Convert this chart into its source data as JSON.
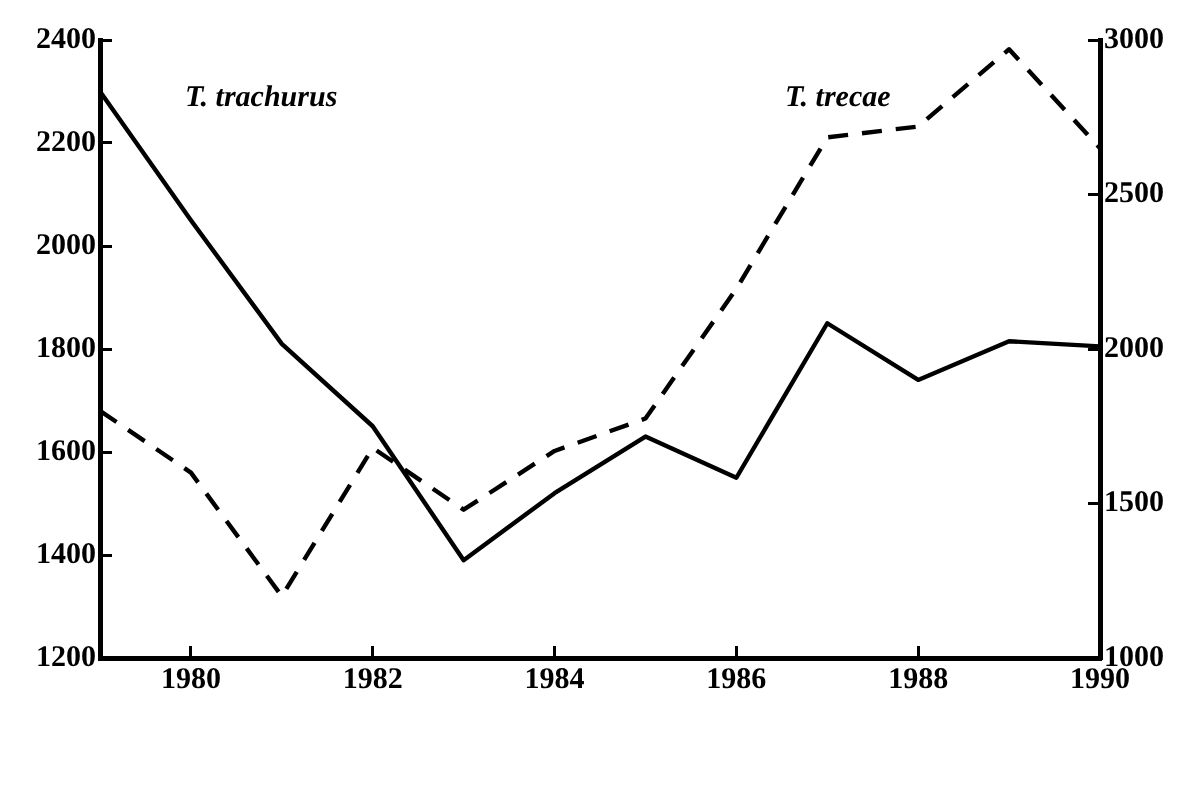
{
  "chart_data": {
    "type": "line",
    "x": [
      1979,
      1980,
      1981,
      1982,
      1983,
      1984,
      1985,
      1986,
      1987,
      1988,
      1989,
      1990
    ],
    "xlim": [
      1979,
      1990
    ],
    "xticks": [
      1980,
      1982,
      1984,
      1986,
      1988,
      1990
    ],
    "ylim": [
      1200,
      2400
    ],
    "yticks": [
      1200,
      1400,
      1600,
      1800,
      2000,
      2200,
      2400
    ],
    "y2lim": [
      1000,
      3000
    ],
    "y2ticks": [
      1000,
      1500,
      2000,
      2500,
      3000
    ],
    "grid": false,
    "legend": false,
    "marker": "none",
    "series": [
      {
        "name": "T. trachurus",
        "color": "#000000",
        "line_style": "solid",
        "values": [
          2300,
          2050,
          1810,
          1650,
          1390,
          1520,
          1630,
          1550,
          1850,
          1740,
          1815,
          1805
        ]
      },
      {
        "name": "T. trecae",
        "color": "#000000",
        "line_style": "dashed",
        "axis": "y2",
        "values": [
          1800,
          1600,
          1200,
          1680,
          1480,
          1670,
          1775,
          2195,
          2685,
          2720,
          2970,
          2650
        ]
      }
    ]
  }
}
